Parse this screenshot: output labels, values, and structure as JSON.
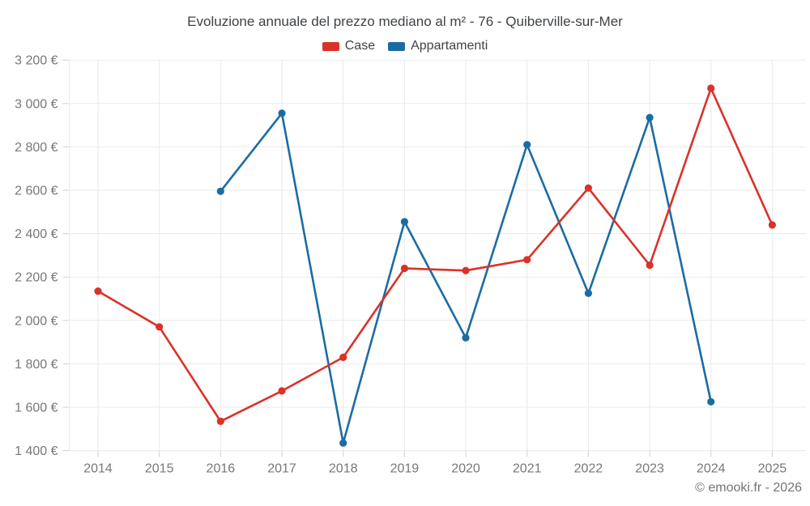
{
  "chart_data": {
    "type": "line",
    "title": "Evoluzione annuale del prezzo mediano al m² - 76 - Quiberville-sur-Mer",
    "categories": [
      "2014",
      "2015",
      "2016",
      "2017",
      "2018",
      "2019",
      "2020",
      "2021",
      "2022",
      "2023",
      "2024",
      "2025"
    ],
    "series": [
      {
        "name": "Case",
        "color": "#da3228",
        "values": [
          2135,
          1970,
          1535,
          1675,
          1830,
          2240,
          2230,
          2280,
          2610,
          2255,
          3070,
          2440
        ]
      },
      {
        "name": "Appartamenti",
        "color": "#1b6ca3",
        "values": [
          null,
          null,
          2595,
          2955,
          1435,
          2455,
          1920,
          2810,
          2125,
          2935,
          1625,
          null
        ]
      }
    ],
    "xlabel": "",
    "ylabel": "",
    "ylim": [
      1400,
      3200
    ],
    "ytick_step": 200,
    "ytick_suffix": " €",
    "grid": true,
    "legend_position": "top"
  },
  "colors": {
    "grid": "#e9eaea",
    "tick": "#cdd0d2",
    "title_text": "#3e4347",
    "axis_text": "#75787b",
    "copyright_text": "#717477"
  },
  "footer": {
    "copyright": "© emooki.fr - 2026"
  }
}
